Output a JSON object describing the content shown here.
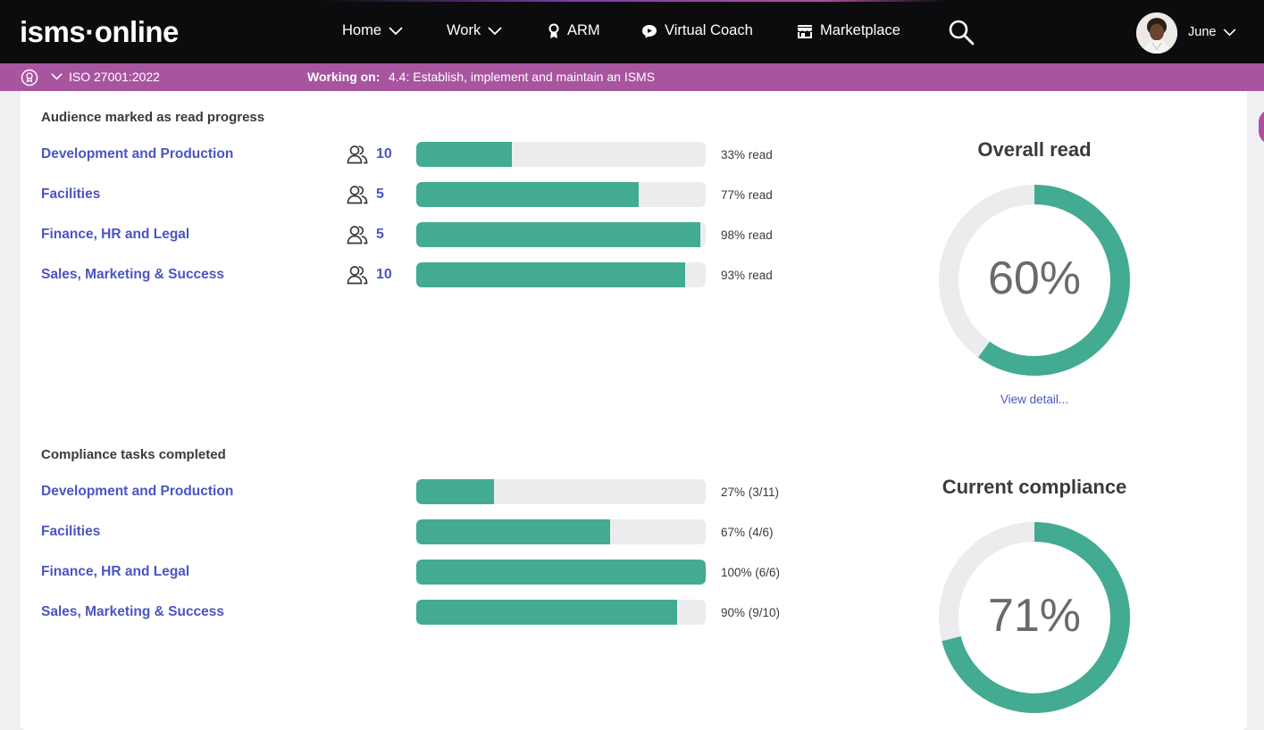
{
  "nav": {
    "logo": "isms·online",
    "home": "Home",
    "work": "Work",
    "arm": "ARM",
    "virtual_coach": "Virtual Coach",
    "marketplace": "Marketplace",
    "user_name": "June"
  },
  "context": {
    "standard": "ISO 27001:2022",
    "working_on_label": "Working on:",
    "working_on_task": "4.4: Establish, implement and maintain an ISMS"
  },
  "read_progress": {
    "title": "Audience marked as read progress",
    "rows": [
      {
        "label": "Development and Production",
        "users": "10",
        "percent": 33,
        "value": "33% read"
      },
      {
        "label": "Facilities",
        "users": "5",
        "percent": 77,
        "value": "77% read"
      },
      {
        "label": "Finance, HR and Legal",
        "users": "5",
        "percent": 98,
        "value": "98% read"
      },
      {
        "label": "Sales, Marketing & Success",
        "users": "10",
        "percent": 93,
        "value": "93% read"
      }
    ],
    "overall_title": "Overall read",
    "overall_percent": 60,
    "overall_label": "60%",
    "view_detail": "View detail..."
  },
  "compliance": {
    "title": "Compliance tasks completed",
    "rows": [
      {
        "label": "Development and Production",
        "percent": 27,
        "value": "27% (3/11)"
      },
      {
        "label": "Facilities",
        "percent": 67,
        "value": "67% (4/6)"
      },
      {
        "label": "Finance, HR and Legal",
        "percent": 100,
        "value": "100% (6/6)"
      },
      {
        "label": "Sales, Marketing & Success",
        "percent": 90,
        "value": "90% (9/10)"
      }
    ],
    "overall_title": "Current compliance",
    "overall_percent": 71,
    "overall_label": "71%"
  },
  "colors": {
    "accent": "#42ab92",
    "track": "#ececee",
    "link": "#4a55c2",
    "context_bar": "#a855a0"
  }
}
